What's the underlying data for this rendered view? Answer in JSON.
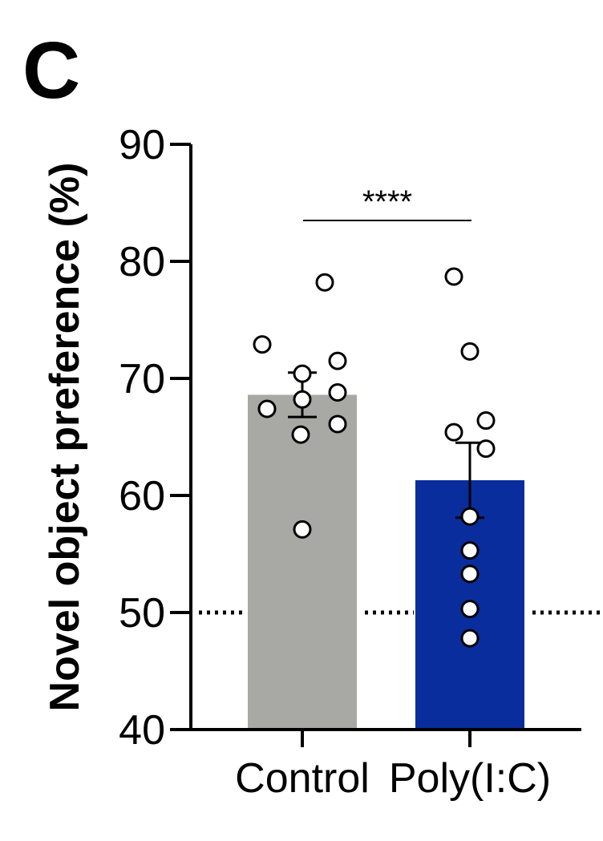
{
  "chart_data": {
    "type": "bar",
    "panel_label": "C",
    "title": "",
    "xlabel": "",
    "ylabel": "Novel object preference (%)",
    "ylim": [
      40,
      90
    ],
    "yticks": [
      40,
      50,
      60,
      70,
      80,
      90
    ],
    "categories": [
      "Control",
      "Poly(I:C)"
    ],
    "values": [
      68.6,
      61.3
    ],
    "error": [
      1.9,
      3.2
    ],
    "colors": [
      "#a8a8a4",
      "#0a2d9e"
    ],
    "reference_line": 50,
    "significance": {
      "label": "****",
      "between": [
        "Control",
        "Poly(I:C)"
      ]
    },
    "points": [
      [
        78.2,
        72.9,
        70.4,
        71.5,
        68.8,
        67.4,
        68.2,
        66.1,
        65.2,
        57.1
      ],
      [
        78.7,
        72.3,
        65.4,
        66.4,
        64.0,
        58.2,
        55.3,
        53.3,
        50.3,
        47.8
      ]
    ],
    "grid": false,
    "legend": "none"
  }
}
